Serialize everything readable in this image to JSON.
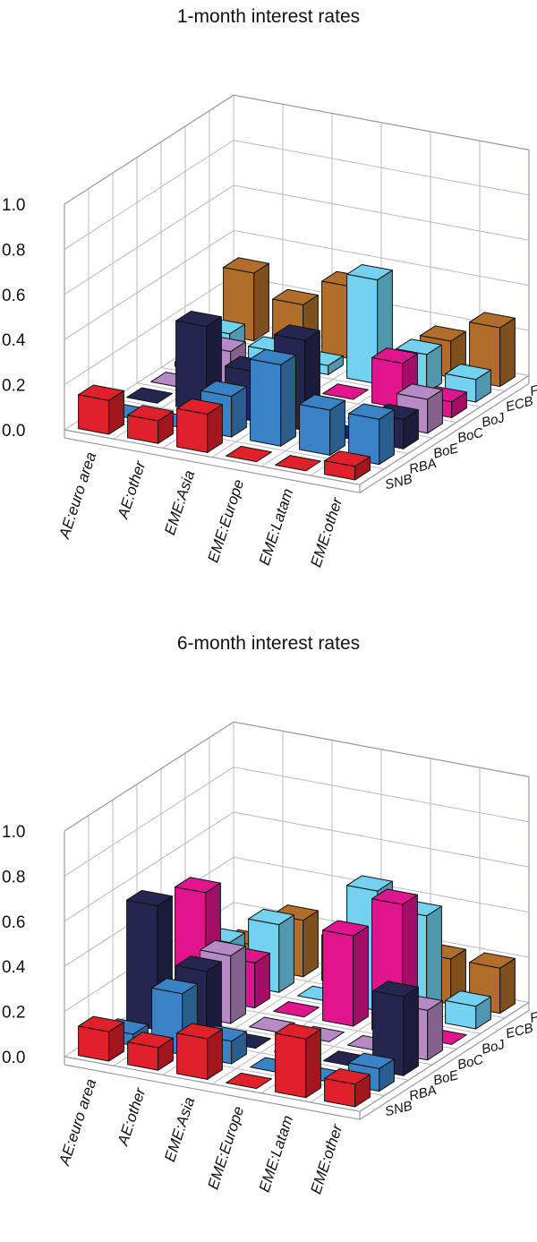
{
  "colors": {
    "Fed": "#b06e2a",
    "ECB": "#72d2f0",
    "BoJ": "#e0148c",
    "BoC": "#b68ac4",
    "BoE": "#252650",
    "RBA": "#3a82c6",
    "SNB": "#e0202a"
  },
  "chart_data": [
    {
      "type": "bar",
      "title": "1-month interest rates",
      "categories": [
        "AE:euro area",
        "AE:other",
        "EME:Asia",
        "EME:Europe",
        "EME:Latam",
        "EME:other"
      ],
      "series_order_back_to_front": [
        "Fed",
        "ECB",
        "BoJ",
        "BoC",
        "BoE",
        "RBA",
        "SNB"
      ],
      "yticks": [
        "0.0",
        "0.2",
        "0.4",
        "0.6",
        "0.8",
        "1.0"
      ],
      "ylim": [
        0,
        1
      ],
      "series": [
        {
          "name": "Fed",
          "values": [
            0.3,
            0.2,
            0.32,
            0.0,
            0.16,
            0.26
          ]
        },
        {
          "name": "ECB",
          "values": [
            0.1,
            0.06,
            0.04,
            0.46,
            0.17,
            0.1
          ]
        },
        {
          "name": "BoJ",
          "values": [
            0.02,
            0.04,
            0.0,
            0.0,
            0.2,
            0.07
          ]
        },
        {
          "name": "BoC",
          "values": [
            0.0,
            0.2,
            0.04,
            0.0,
            0.0,
            0.15
          ]
        },
        {
          "name": "BoE",
          "values": [
            0.0,
            0.38,
            0.22,
            0.4,
            0.0,
            0.13
          ]
        },
        {
          "name": "RBA",
          "values": [
            0.0,
            0.0,
            0.18,
            0.36,
            0.2,
            0.2
          ]
        },
        {
          "name": "SNB",
          "values": [
            0.15,
            0.1,
            0.17,
            0.0,
            0.0,
            0.06
          ]
        }
      ]
    },
    {
      "type": "bar",
      "title": "6-month interest rates",
      "categories": [
        "AE:euro area",
        "AE:other",
        "EME:Asia",
        "EME:Europe",
        "EME:Latam",
        "EME:other"
      ],
      "series_order_back_to_front": [
        "Fed",
        "ECB",
        "BoJ",
        "BoC",
        "BoE",
        "RBA",
        "SNB"
      ],
      "yticks": [
        "0.0",
        "0.2",
        "0.4",
        "0.6",
        "0.8",
        "1.0"
      ],
      "ylim": [
        0,
        1
      ],
      "series": [
        {
          "name": "Fed",
          "values": [
            0.1,
            0.25,
            0.2,
            0.0,
            0.2,
            0.2
          ]
        },
        {
          "name": "ECB",
          "values": [
            0.18,
            0.3,
            0.0,
            0.53,
            0.46,
            0.1
          ]
        },
        {
          "name": "BoJ",
          "values": [
            0.47,
            0.2,
            0.0,
            0.4,
            0.58,
            0.0
          ]
        },
        {
          "name": "BoC",
          "values": [
            0.0,
            0.3,
            0.0,
            0.0,
            0.0,
            0.22
          ]
        },
        {
          "name": "BoE",
          "values": [
            0.55,
            0.3,
            0.0,
            0.0,
            0.0,
            0.35
          ]
        },
        {
          "name": "RBA",
          "values": [
            0.05,
            0.27,
            0.1,
            0.0,
            0.0,
            0.1
          ]
        },
        {
          "name": "SNB",
          "values": [
            0.13,
            0.1,
            0.18,
            0.0,
            0.26,
            0.1
          ]
        }
      ]
    }
  ]
}
